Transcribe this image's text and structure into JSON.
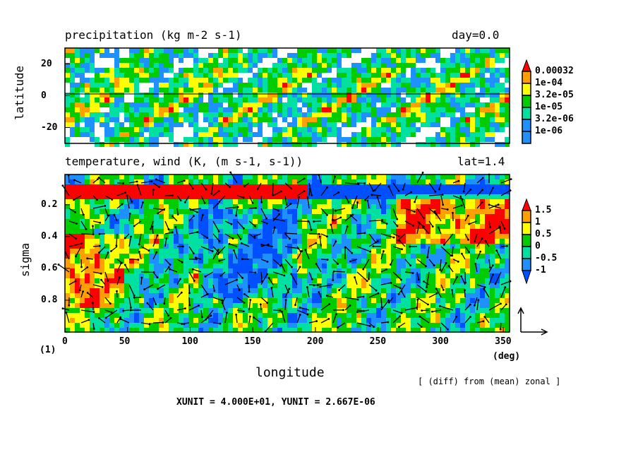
{
  "chart_data": [
    {
      "type": "heatmap",
      "title": "precipitation (kg m-2 s-1)",
      "annotation": "day=0.0",
      "ylabel": "latitude",
      "xlim": [
        0,
        355
      ],
      "ylim": [
        -30,
        30
      ],
      "yticks": [
        "20",
        "0",
        "-20"
      ],
      "ytick_values": [
        20,
        0,
        -20
      ],
      "colorbar": {
        "labels": [
          "0.00032",
          "1e-04",
          "3.2e-05",
          "1e-05",
          "3.2e-06",
          "1e-06"
        ],
        "colors": [
          "#ffffff",
          "#1e90ff",
          "#00e0a0",
          "#00cc00",
          "#ffff00",
          "#ffa000",
          "#ff0000"
        ]
      }
    },
    {
      "type": "heatmap",
      "title": "temperature, wind (K, (m s-1, s-1))",
      "annotation": "lat=1.4",
      "ylabel": "sigma",
      "xlabel": "longitude",
      "xunit": "(deg)",
      "panel_index": "(1)",
      "xlim": [
        0,
        355
      ],
      "ylim": [
        0.01,
        1.0
      ],
      "xticks": [
        "0",
        "50",
        "100",
        "150",
        "200",
        "250",
        "300",
        "350"
      ],
      "xtick_values": [
        0,
        50,
        100,
        150,
        200,
        250,
        300,
        350
      ],
      "yticks": [
        "0.2",
        "0.4",
        "0.6",
        "0.8"
      ],
      "ytick_values": [
        0.2,
        0.4,
        0.6,
        0.8
      ],
      "colorbar": {
        "labels": [
          "1.5",
          "1",
          "0.5",
          "0",
          "-0.5",
          "-1"
        ],
        "colors": [
          "#0050ff",
          "#1e90ff",
          "#00e0a0",
          "#00cc00",
          "#ffff00",
          "#ffa000",
          "#ff0000"
        ]
      },
      "note": "[ (diff) from (mean) zonal ]",
      "vector_units": "XUNIT = 4.000E+01, YUNIT = 2.667E-06"
    }
  ]
}
